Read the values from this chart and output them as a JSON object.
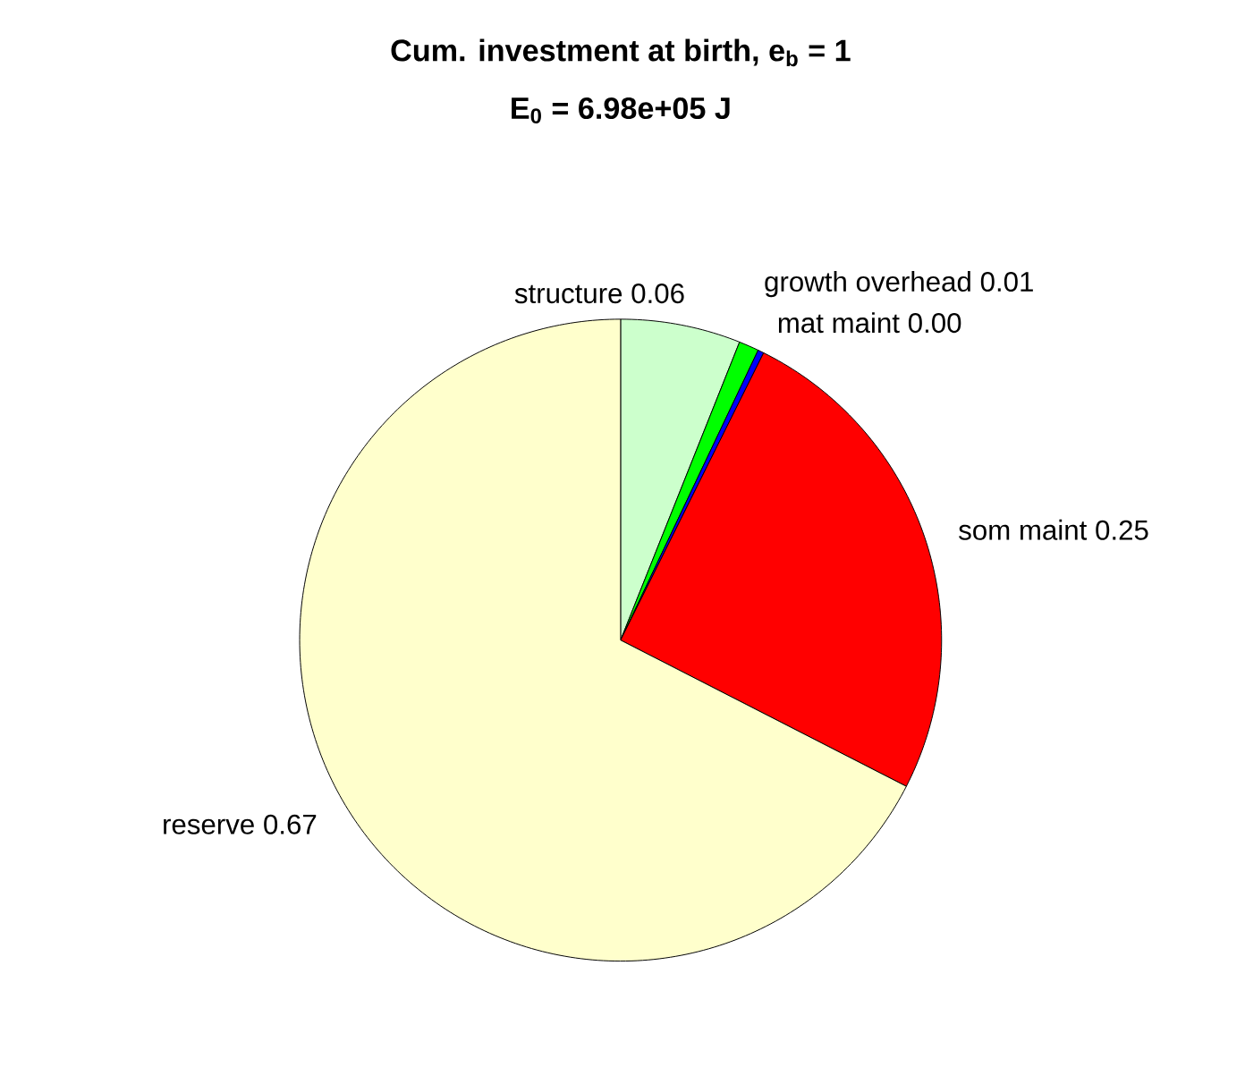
{
  "chart_data": {
    "type": "pie",
    "title": "Cum. investment at birth, e$_{b}$ = 1",
    "subtitle": "E$_{0}$ = 6.98e+05 J",
    "categories": [
      "structure",
      "growth overhead",
      "mat maint",
      "som maint",
      "reserve"
    ],
    "values": [
      0.06,
      0.01,
      0.003,
      0.25,
      0.67
    ],
    "value_labels": [
      "0.06",
      "0.01",
      "0.00",
      "0.25",
      "0.67"
    ],
    "colors": [
      "#ccffcc",
      "#00ff00",
      "#0000ff",
      "#ff0000",
      "#ffffcc"
    ]
  }
}
